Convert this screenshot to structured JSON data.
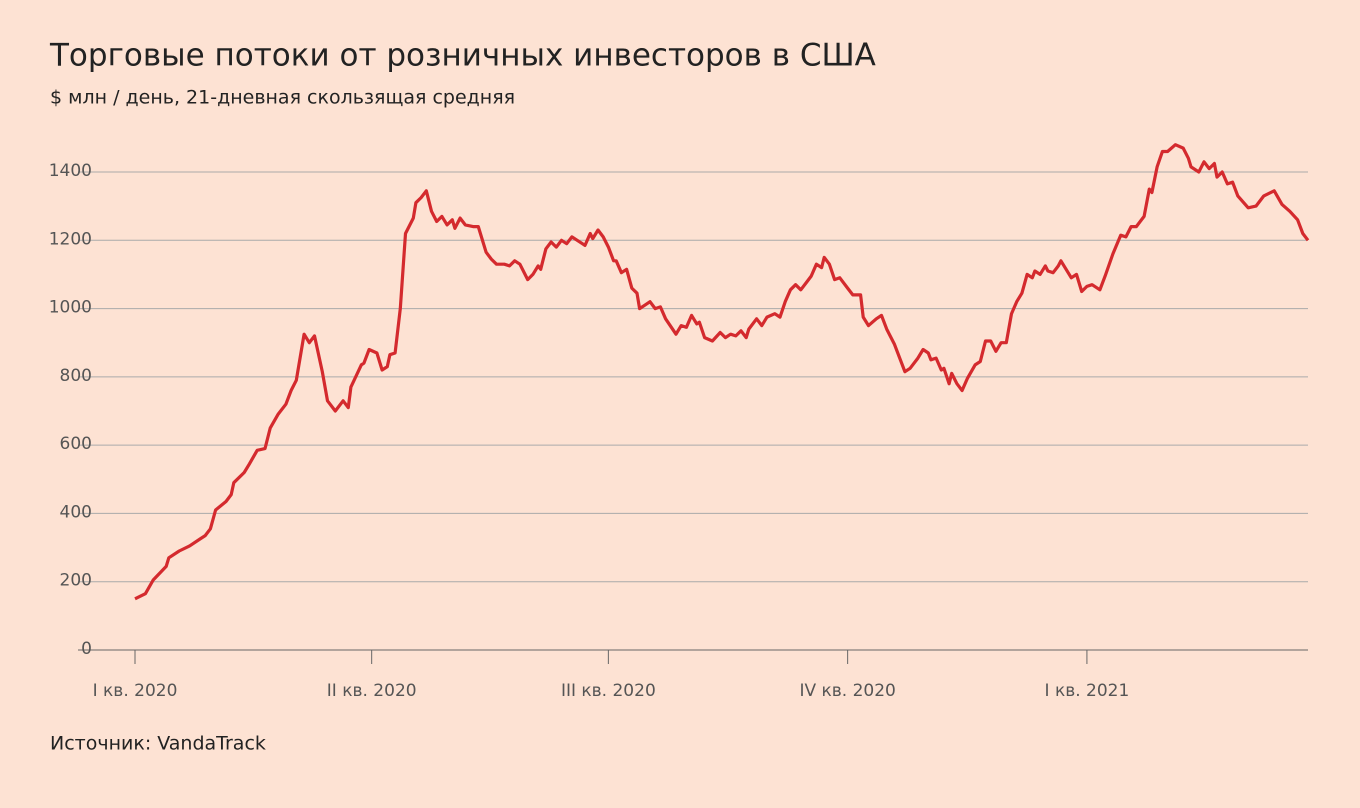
{
  "chart_data": {
    "type": "line",
    "title": "Торговые потоки от розничных инвесторов в США",
    "subtitle": "$ млн / день, 21-дневная скользящая средняя",
    "source": "Источник: VandaTrack",
    "color": "#d42a2e",
    "grid": true,
    "x": [
      0,
      4,
      7,
      12,
      13,
      17,
      21,
      25,
      27,
      29,
      31,
      35,
      37,
      38,
      42,
      44,
      47,
      50,
      52,
      55,
      58,
      60,
      62,
      65,
      67,
      69,
      72,
      74,
      77,
      80,
      82,
      83,
      87,
      88,
      90,
      93,
      95,
      97,
      98,
      100,
      102,
      104,
      107,
      108,
      110,
      112,
      114,
      116,
      118,
      120,
      122,
      123,
      125,
      127,
      130,
      132,
      135,
      137,
      139,
      142,
      144,
      146,
      148,
      151,
      153,
      155,
      156,
      158,
      160,
      162,
      164,
      166,
      168,
      170,
      172,
      173,
      175,
      176,
      178,
      180,
      182,
      184,
      185,
      187,
      189,
      191,
      193,
      194,
      196,
      198,
      200,
      202,
      204,
      208,
      210,
      212,
      214,
      216,
      217,
      219,
      222,
      225,
      227,
      229,
      231,
      233,
      235,
      236,
      239,
      241,
      243,
      246,
      248,
      250,
      252,
      254,
      256,
      258,
      260,
      262,
      264,
      265,
      267,
      269,
      271,
      274,
      276,
      279,
      280,
      282,
      285,
      287,
      289,
      292,
      294,
      296,
      298,
      301,
      303,
      305,
      306,
      308,
      310,
      311,
      313,
      314,
      316,
      318,
      320,
      323,
      325,
      327,
      329,
      331,
      333,
      335,
      337,
      339,
      341,
      343,
      345,
      346,
      348,
      350,
      351,
      353,
      355,
      356,
      358,
      360,
      362,
      364,
      366,
      368,
      371,
      373,
      376,
      379,
      381,
      383,
      385,
      388,
      390,
      391,
      393,
      395,
      397,
      400,
      403,
      405,
      406,
      409,
      411,
      413,
      415,
      416,
      418,
      420,
      422,
      424,
      428,
      431,
      434,
      438,
      441,
      444,
      447,
      449,
      451
    ],
    "values": [
      150,
      165,
      205,
      245,
      270,
      290,
      305,
      325,
      335,
      355,
      410,
      435,
      455,
      490,
      520,
      545,
      585,
      590,
      650,
      690,
      720,
      760,
      790,
      925,
      900,
      920,
      815,
      730,
      700,
      730,
      710,
      770,
      835,
      840,
      880,
      870,
      820,
      830,
      865,
      870,
      1000,
      1220,
      1265,
      1310,
      1325,
      1345,
      1285,
      1255,
      1270,
      1245,
      1260,
      1235,
      1265,
      1245,
      1240,
      1240,
      1165,
      1145,
      1130,
      1130,
      1125,
      1140,
      1130,
      1085,
      1100,
      1125,
      1115,
      1175,
      1195,
      1180,
      1200,
      1190,
      1210,
      1200,
      1190,
      1185,
      1220,
      1205,
      1230,
      1210,
      1180,
      1140,
      1140,
      1105,
      1115,
      1060,
      1045,
      1000,
      1010,
      1020,
      1000,
      1005,
      970,
      925,
      950,
      945,
      980,
      955,
      960,
      915,
      905,
      930,
      915,
      925,
      920,
      935,
      915,
      940,
      970,
      950,
      975,
      985,
      975,
      1020,
      1055,
      1070,
      1055,
      1075,
      1095,
      1130,
      1120,
      1150,
      1130,
      1085,
      1090,
      1060,
      1040,
      1040,
      975,
      950,
      970,
      980,
      940,
      895,
      855,
      815,
      825,
      855,
      880,
      870,
      850,
      855,
      820,
      825,
      780,
      810,
      780,
      760,
      795,
      835,
      845,
      905,
      905,
      875,
      900,
      900,
      985,
      1020,
      1045,
      1100,
      1090,
      1110,
      1100,
      1125,
      1110,
      1105,
      1125,
      1140,
      1115,
      1090,
      1100,
      1050,
      1065,
      1070,
      1055,
      1095,
      1160,
      1215,
      1210,
      1240,
      1240,
      1270,
      1350,
      1340,
      1415,
      1460,
      1460,
      1480,
      1470,
      1440,
      1415,
      1400,
      1430,
      1410,
      1425,
      1385,
      1400,
      1365,
      1370,
      1330,
      1295,
      1300,
      1330,
      1345,
      1305,
      1285,
      1260,
      1220,
      1200
    ],
    "xlim": [
      0,
      451
    ],
    "xticks": [
      {
        "value": 0,
        "label": "I кв. 2020"
      },
      {
        "value": 91,
        "label": "II кв. 2020"
      },
      {
        "value": 182,
        "label": "III кв. 2020"
      },
      {
        "value": 274,
        "label": "IV кв. 2020"
      },
      {
        "value": 366,
        "label": "I кв. 2021"
      }
    ],
    "ylim": [
      0,
      1400
    ],
    "yticks": [
      0,
      200,
      400,
      600,
      800,
      1000,
      1200,
      1400
    ]
  }
}
